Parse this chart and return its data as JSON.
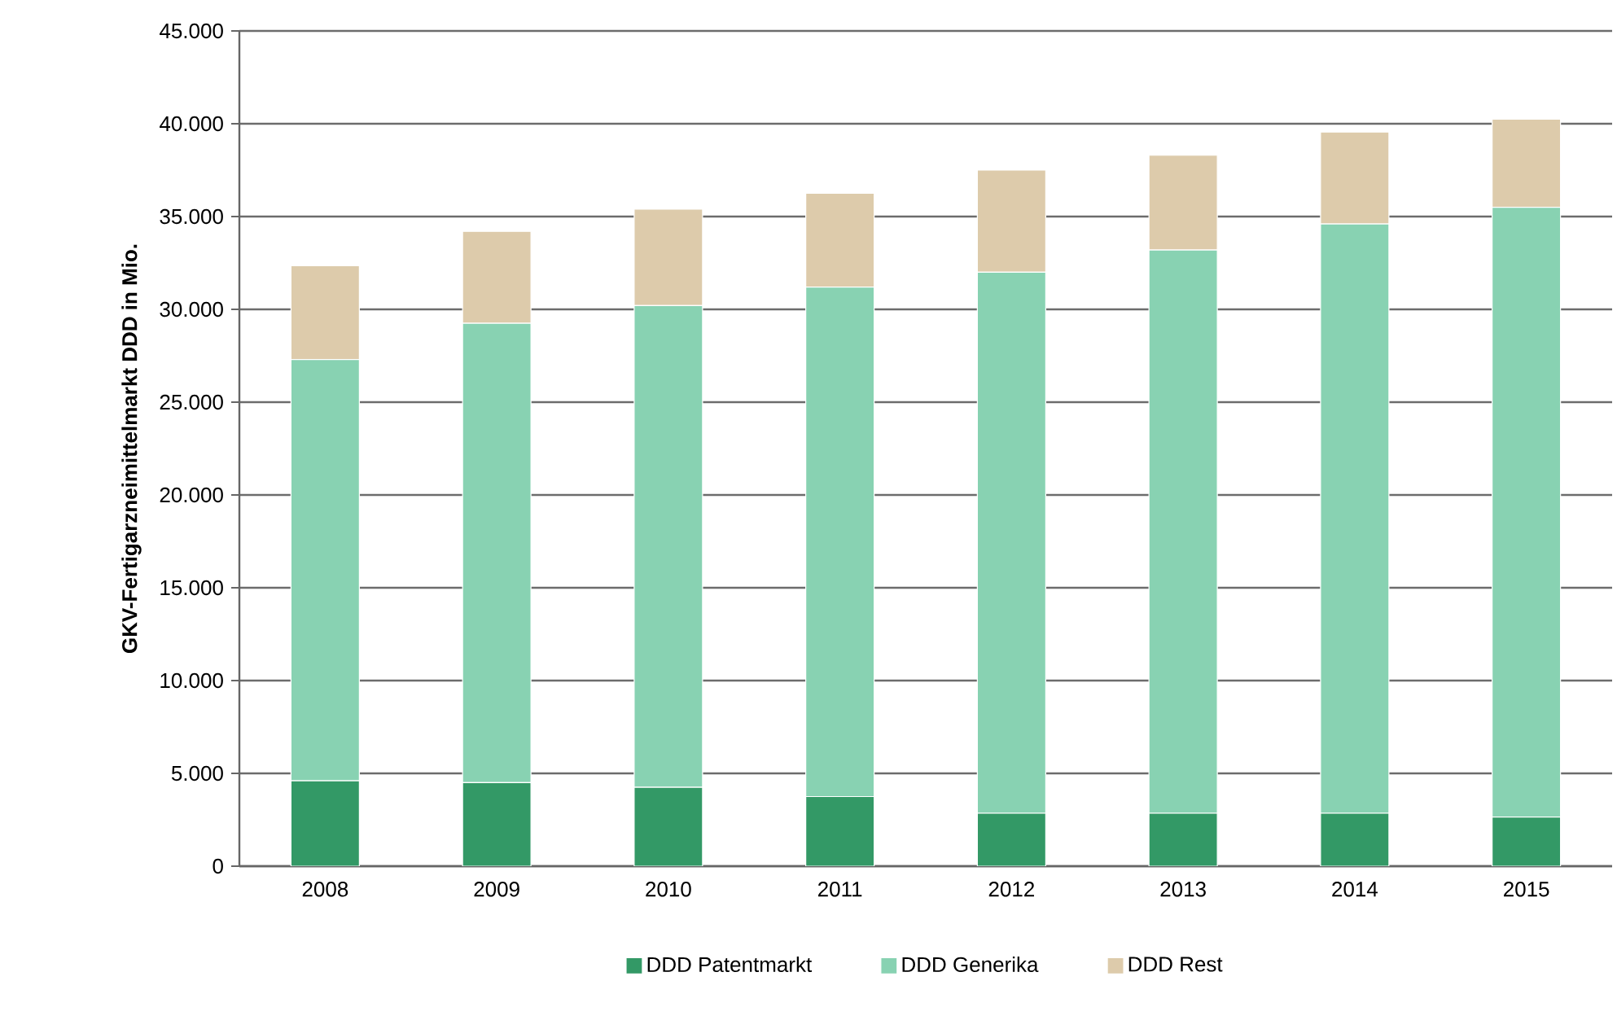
{
  "chart_data": {
    "type": "bar",
    "stacked": true,
    "ylabel": "**GKV-Fertigarzneimittelmarkt DDD in Mio.**",
    "categories": [
      "2008",
      "2009",
      "2010",
      "2011",
      "2012",
      "2013",
      "2014",
      "2015"
    ],
    "series": [
      {
        "name": "DDD Patentmarkt",
        "color": "#339966",
        "values": [
          4600,
          4500,
          4250,
          3750,
          2850,
          2850,
          2850,
          2650
        ]
      },
      {
        "name": "DDD Generika",
        "color": "#88d2b2",
        "values": [
          22700,
          24750,
          25950,
          27450,
          29150,
          30350,
          31750,
          32850
        ]
      },
      {
        "name": "DDD Rest",
        "color": "#ddcbab",
        "values": [
          5050,
          4950,
          5200,
          5050,
          5500,
          5100,
          4950,
          4750
        ]
      }
    ],
    "ylim": [
      0,
      45000
    ],
    "yticks": [
      {
        "value": 0,
        "label": "0"
      },
      {
        "value": 5000,
        "label": "5.000"
      },
      {
        "value": 10000,
        "label": "10.000"
      },
      {
        "value": 15000,
        "label": "15.000"
      },
      {
        "value": 20000,
        "label": "20.000"
      },
      {
        "value": 25000,
        "label": "25.000"
      },
      {
        "value": 30000,
        "label": "30.000"
      },
      {
        "value": 35000,
        "label": "35.000"
      },
      {
        "value": 40000,
        "label": "40.000"
      },
      {
        "value": 45000,
        "label": "45.000"
      }
    ],
    "grid": "y",
    "legend": "bottom"
  }
}
